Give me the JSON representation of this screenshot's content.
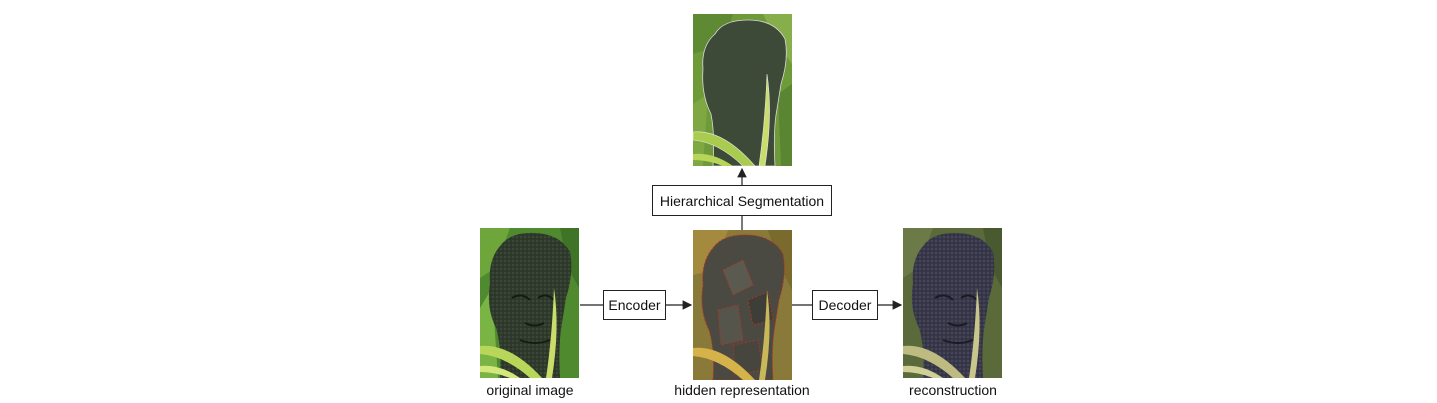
{
  "diagram": {
    "nodes": {
      "original": {
        "caption": "original image"
      },
      "hidden": {
        "caption": "hidden representation"
      },
      "reconstruction": {
        "caption": "reconstruction"
      },
      "segmentation_output": {}
    },
    "boxes": {
      "encoder": "Encoder",
      "decoder": "Decoder",
      "segmentation": "Hierarchical Segmentation"
    },
    "colors": {
      "line": "#222222",
      "foliage": "#4f8a2e",
      "statue": "#2f3a2c",
      "boundary": "#c0301e",
      "seg_background": "#6f9a3a",
      "seg_statue": "#3d4a38",
      "leaf": "#c9de6a"
    }
  }
}
